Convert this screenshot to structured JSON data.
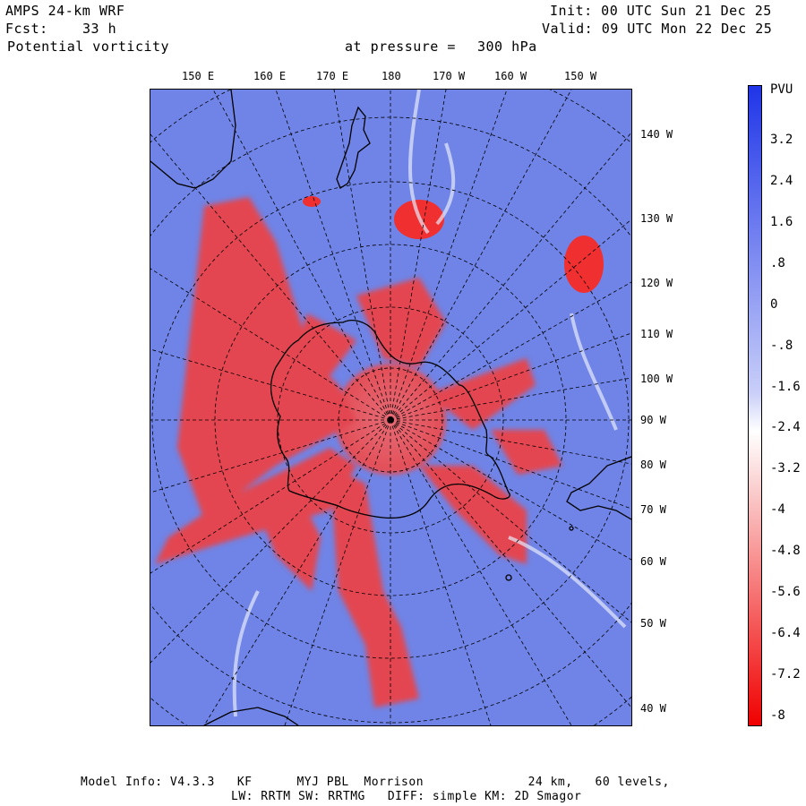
{
  "header": {
    "model": "AMPS 24-km WRF",
    "fcst_label": "Fcst:",
    "fcst_value": "33 h",
    "field": "Potential vorticity",
    "level_label": "at pressure =",
    "level_value": "300 hPa",
    "init": "Init: 00 UTC Sun 21 Dec 25",
    "valid": "Valid: 09 UTC Mon 22 Dec 25"
  },
  "map": {
    "top_longitude_labels": [
      "150 E",
      "160 E",
      "170 E",
      "180",
      "170 W",
      "160 W",
      "150 W"
    ],
    "right_longitude_labels": [
      "140 W",
      "130 W",
      "120 W",
      "110 W",
      "100 W",
      "90 W",
      "80 W",
      "70 W",
      "60 W",
      "50 W",
      "40 W"
    ],
    "background_color": "#6f84e6",
    "high_pv_color": "#f03030",
    "coastline_color": "#000000"
  },
  "colorbar": {
    "unit": "PVU",
    "labels": [
      "3.2",
      "2.4",
      "1.6",
      ".8",
      "0",
      "-.8",
      "-1.6",
      "-2.4",
      "-3.2",
      "-4",
      "-4.8",
      "-5.6",
      "-6.4",
      "-7.2",
      "-8"
    ],
    "top_color": "#1f35e8",
    "bottom_color": "#f00000"
  },
  "footer": {
    "line1": "Model Info: V4.3.3   KF      MYJ PBL  Morrison              24 km,   60 levels,",
    "line2": "LW: RRTM SW: RRTMG   DIFF: simple KM: 2D Smagor"
  }
}
